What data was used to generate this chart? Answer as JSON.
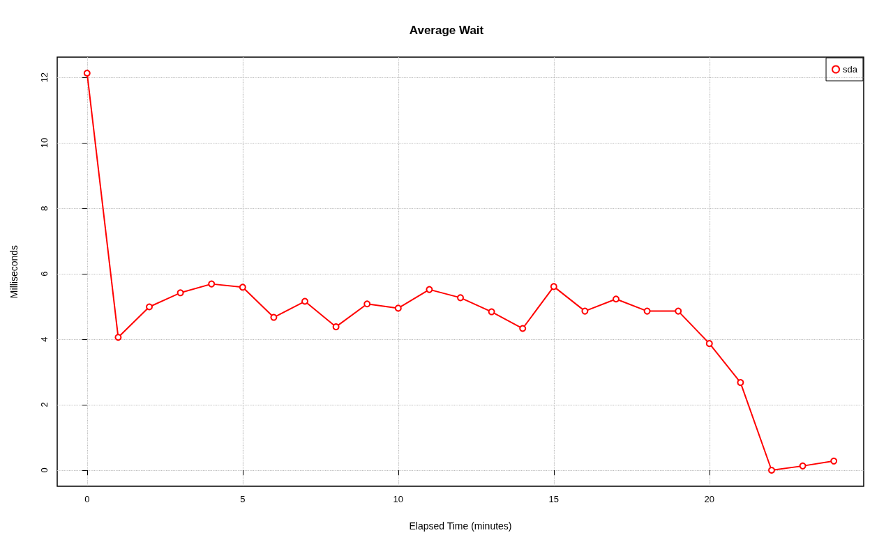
{
  "chart_data": {
    "type": "line",
    "title": "Average Wait",
    "xlabel": "Elapsed Time (minutes)",
    "ylabel": "Milliseconds",
    "x": [
      0,
      1,
      2,
      3,
      4,
      5,
      6,
      7,
      8,
      9,
      10,
      11,
      12,
      13,
      14,
      15,
      16,
      17,
      18,
      19,
      20,
      21,
      22,
      23,
      24
    ],
    "series": [
      {
        "name": "sda",
        "color": "#ff0000",
        "values": [
          12.13,
          4.06,
          4.99,
          5.42,
          5.69,
          5.59,
          4.67,
          5.16,
          4.38,
          5.08,
          4.95,
          5.52,
          5.27,
          4.84,
          4.33,
          5.61,
          4.86,
          5.23,
          4.86,
          4.86,
          3.87,
          2.68,
          0,
          0.13,
          0.28
        ]
      }
    ],
    "xlim": [
      -0.96,
      24.96
    ],
    "xticks": [
      0,
      5,
      10,
      15,
      20
    ],
    "ylim": [
      -0.49,
      12.62
    ],
    "yticks": [
      0,
      2,
      4,
      6,
      8,
      10,
      12
    ],
    "grid": true,
    "legend": "top right",
    "marker": "circle",
    "line_style": "solid"
  }
}
